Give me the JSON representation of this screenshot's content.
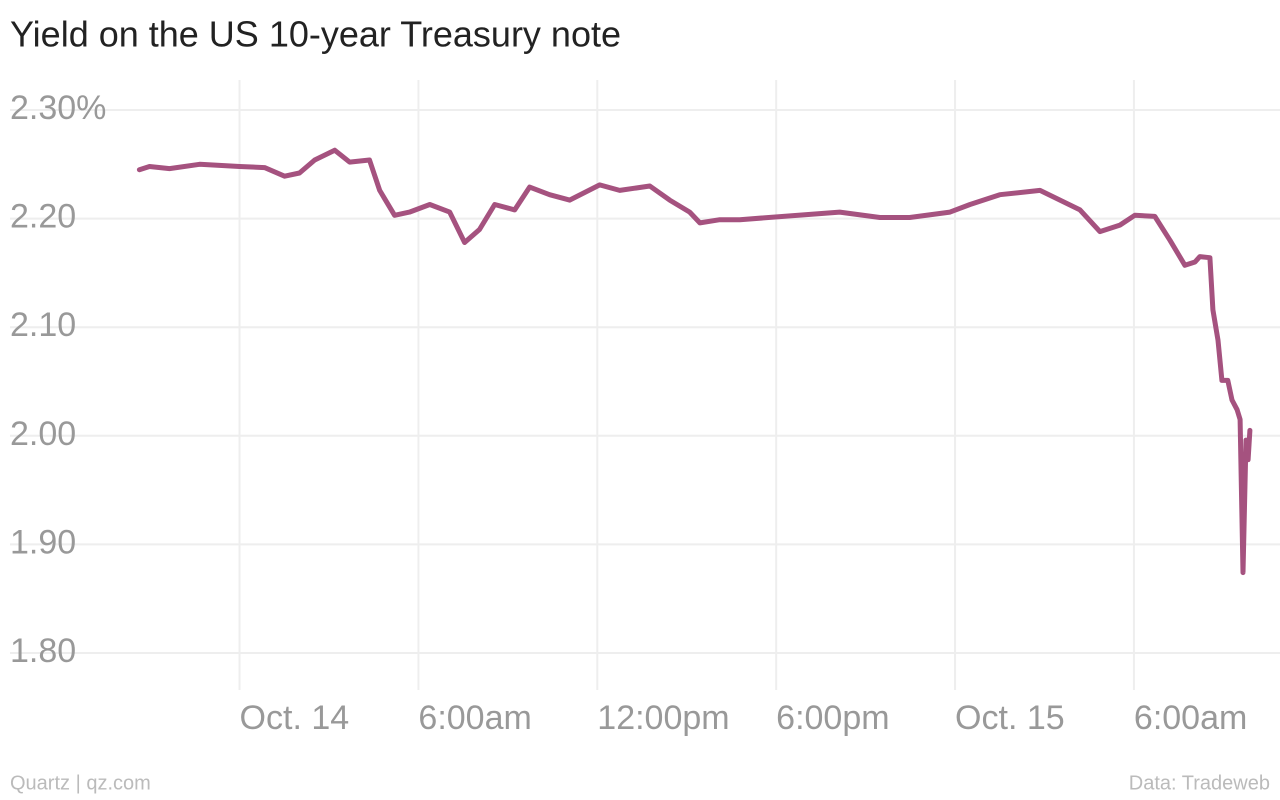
{
  "chart_data": {
    "type": "line",
    "title": "Yield on the US 10-year Treasury note",
    "source_left": "Quartz | qz.com",
    "source_right": "Data: Tradeweb",
    "color": "#a5527f",
    "grid": true,
    "xlim": [
      -7.7,
      34.9
    ],
    "ylim": [
      1.8,
      2.3
    ],
    "xticks": [
      {
        "value": 0,
        "label": "Oct. 14"
      },
      {
        "value": 6,
        "label": "6:00am"
      },
      {
        "value": 12,
        "label": "12:00pm"
      },
      {
        "value": 18,
        "label": "6:00pm"
      },
      {
        "value": 24,
        "label": "Oct. 15"
      },
      {
        "value": 30,
        "label": "6:00am"
      }
    ],
    "yticks": [
      {
        "value": 1.8,
        "label": "1.80"
      },
      {
        "value": 1.9,
        "label": "1.90"
      },
      {
        "value": 2.0,
        "label": "2.00"
      },
      {
        "value": 2.1,
        "label": "2.10"
      },
      {
        "value": 2.2,
        "label": "2.20"
      },
      {
        "value": 2.3,
        "label": "2.30%"
      }
    ],
    "x": [
      -3.36,
      -3.02,
      -2.35,
      -1.34,
      0,
      0.84,
      1.51,
      2.01,
      2.52,
      3.19,
      3.69,
      4.36,
      4.7,
      5.2,
      5.7,
      6.38,
      7.05,
      7.55,
      8.05,
      8.56,
      9.23,
      9.73,
      10.4,
      11.07,
      12.08,
      12.75,
      13.76,
      14.43,
      15.1,
      15.44,
      16.11,
      16.78,
      20.13,
      21.48,
      22.48,
      23.83,
      24.5,
      25.5,
      26.85,
      27.52,
      28.19,
      28.86,
      29.53,
      30.03,
      30.7,
      31.21,
      31.71,
      32.05,
      32.21,
      32.55,
      32.65,
      32.82,
      32.95,
      33.15,
      33.29,
      33.46,
      33.56,
      33.66,
      33.76,
      33.83,
      33.89
    ],
    "values": [
      2.245,
      2.248,
      2.246,
      2.25,
      2.248,
      2.247,
      2.239,
      2.242,
      2.254,
      2.263,
      2.252,
      2.254,
      2.226,
      2.203,
      2.206,
      2.213,
      2.206,
      2.178,
      2.19,
      2.213,
      2.208,
      2.229,
      2.222,
      2.217,
      2.231,
      2.226,
      2.23,
      2.217,
      2.206,
      2.196,
      2.199,
      2.199,
      2.206,
      2.201,
      2.201,
      2.206,
      2.213,
      2.222,
      2.226,
      2.217,
      2.208,
      2.188,
      2.194,
      2.203,
      2.202,
      2.18,
      2.157,
      2.16,
      2.165,
      2.164,
      2.116,
      2.088,
      2.051,
      2.051,
      2.033,
      2.024,
      2.015,
      1.874,
      1.996,
      1.978,
      2.005
    ]
  }
}
